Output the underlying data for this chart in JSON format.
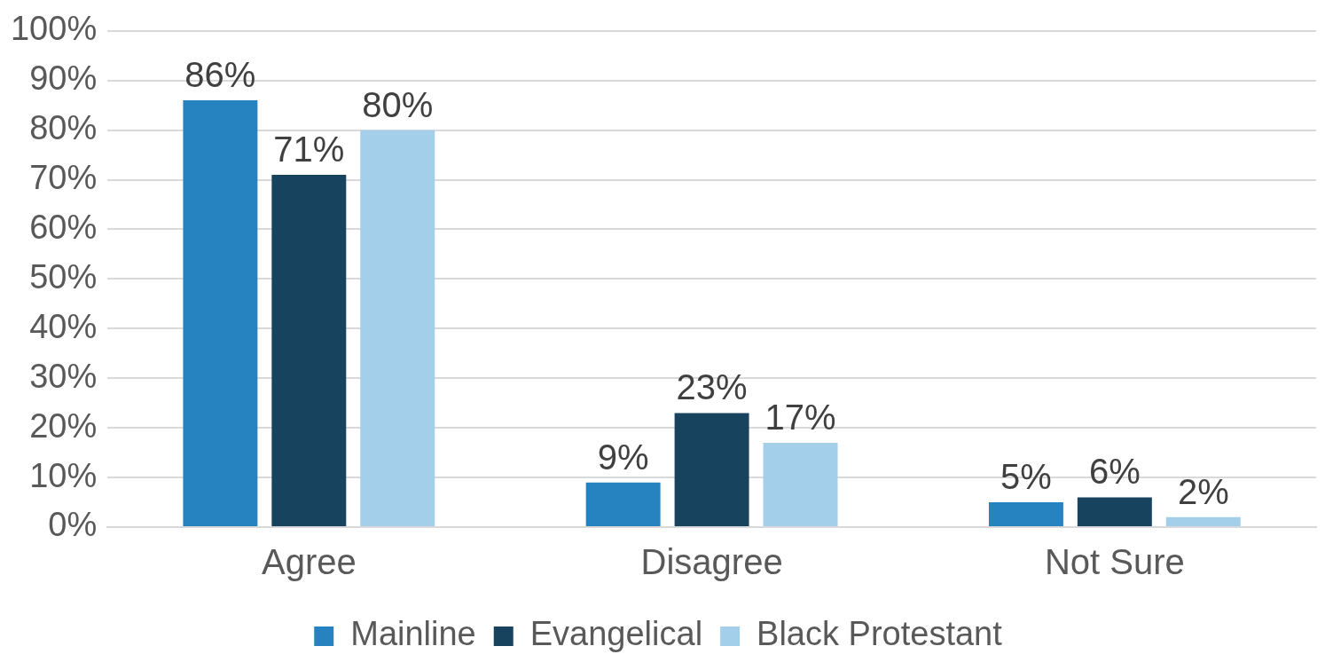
{
  "chart_data": {
    "type": "bar",
    "categories": [
      "Agree",
      "Disagree",
      "Not Sure"
    ],
    "series": [
      {
        "name": "Mainline",
        "color": "#2683c0",
        "values": [
          86,
          9,
          5
        ],
        "value_labels": [
          "86%",
          "9%",
          "5%"
        ]
      },
      {
        "name": "Evangelical",
        "color": "#17435f",
        "values": [
          71,
          23,
          6
        ],
        "value_labels": [
          "71%",
          "23%",
          "6%"
        ]
      },
      {
        "name": "Black Protestant",
        "color": "#a3cfeb",
        "values": [
          80,
          17,
          2
        ],
        "value_labels": [
          "80%",
          "17%",
          "2%"
        ]
      }
    ],
    "ylim": [
      0,
      100
    ],
    "yticks": [
      {
        "value": 0,
        "label": "0%"
      },
      {
        "value": 10,
        "label": "10%"
      },
      {
        "value": 20,
        "label": "20%"
      },
      {
        "value": 30,
        "label": "30%"
      },
      {
        "value": 40,
        "label": "40%"
      },
      {
        "value": 50,
        "label": "50%"
      },
      {
        "value": 60,
        "label": "60%"
      },
      {
        "value": 70,
        "label": "70%"
      },
      {
        "value": 80,
        "label": "80%"
      },
      {
        "value": 90,
        "label": "90%"
      },
      {
        "value": 100,
        "label": "100%"
      }
    ],
    "grid": "y",
    "legend": "bottom"
  }
}
